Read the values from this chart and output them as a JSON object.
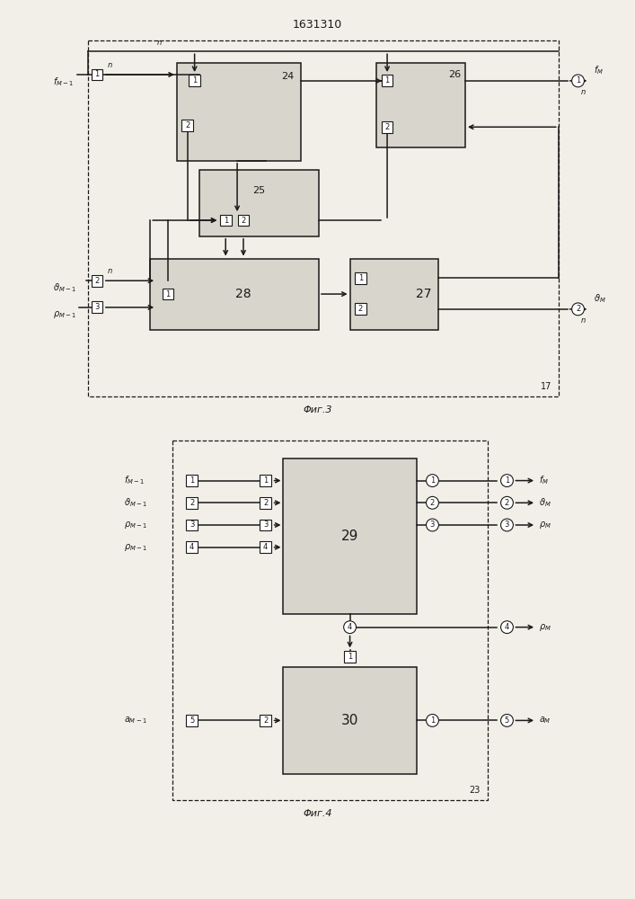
{
  "title": "1631310",
  "bg_color": "#f2efe8",
  "line_color": "#1a1a1a",
  "box_fill": "#d8d5cc",
  "white_fill": "#ffffff",
  "fig1_caption": "Φиг.3",
  "fig2_caption": "Φиг.4"
}
